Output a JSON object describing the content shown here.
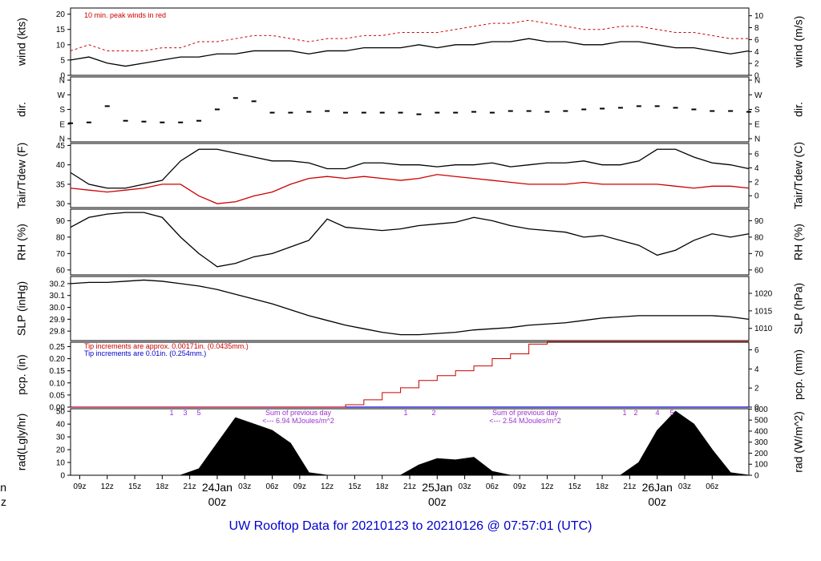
{
  "chart_data": {
    "type": "line",
    "footer": "UW Rooftop Data for 20210123  to  20210126 @ 07:57:01  (UTC)",
    "time_axis": {
      "labels": [
        "09z",
        "12z",
        "15z",
        "18z",
        "21z",
        "00z",
        "03z",
        "06z",
        "09z",
        "12z",
        "15z",
        "18z",
        "21z",
        "00z",
        "03z",
        "06z",
        "09z",
        "12z",
        "15z",
        "18z",
        "21z",
        "00z",
        "03z",
        "06z"
      ],
      "day_labels": [
        {
          "day": "24Jan",
          "time": "00z"
        },
        {
          "day": "25Jan",
          "time": "00z"
        },
        {
          "day": "26Jan",
          "time": "00z"
        }
      ],
      "edge_label": {
        "day": "Jan",
        "time": "z"
      },
      "colors": {
        "day": "#cc0000"
      }
    },
    "panels": {
      "wind": {
        "ylabel_left": "wind (kts)",
        "ylabel_right": "wind (m/s)",
        "ylim": [
          0,
          22
        ],
        "ylim_right": [
          0,
          11.3
        ],
        "ticks_left": [
          "0",
          "5",
          "10",
          "15",
          "20"
        ],
        "ticks_right": [
          "0",
          "2",
          "4",
          "6",
          "8",
          "10"
        ],
        "note": "10 min. peak winds in red",
        "series": [
          {
            "name": "10 min. peak winds",
            "color": "#cc0000",
            "style": "dash",
            "x": [
              0,
              2,
              4,
              6,
              8,
              10,
              12,
              14,
              16,
              18,
              20,
              22,
              24,
              26,
              28,
              30,
              32,
              34,
              36,
              38,
              40,
              42,
              44,
              46,
              48,
              50,
              52,
              54,
              56,
              58,
              60,
              62,
              64,
              66,
              68,
              70,
              72,
              74
            ],
            "values": [
              8,
              10,
              8,
              8,
              8,
              9,
              9,
              11,
              11,
              12,
              13,
              13,
              12,
              11,
              12,
              12,
              13,
              13,
              14,
              14,
              14,
              15,
              16,
              17,
              17,
              18,
              17,
              16,
              15,
              15,
              16,
              16,
              15,
              14,
              14,
              13,
              12,
              12
            ]
          },
          {
            "color": "#000000",
            "x": [
              0,
              2,
              4,
              6,
              8,
              10,
              12,
              14,
              16,
              18,
              20,
              22,
              24,
              26,
              28,
              30,
              32,
              34,
              36,
              38,
              40,
              42,
              44,
              46,
              48,
              50,
              52,
              54,
              56,
              58,
              60,
              62,
              64,
              66,
              68,
              70,
              72,
              74
            ],
            "values": [
              5,
              6,
              4,
              3,
              4,
              5,
              6,
              6,
              7,
              7,
              8,
              8,
              8,
              7,
              8,
              8,
              9,
              9,
              9,
              10,
              9,
              10,
              10,
              11,
              11,
              12,
              11,
              11,
              10,
              10,
              11,
              11,
              10,
              9,
              9,
              8,
              7,
              8
            ]
          }
        ]
      },
      "dir": {
        "ylabel_left": "dir.",
        "ylabel_right": "dir.",
        "ticks": [
          "N",
          "E",
          "S",
          "W",
          "N"
        ],
        "series": [
          {
            "color": "#000000",
            "style": "dots",
            "x": [
              0,
              2,
              4,
              6,
              8,
              10,
              12,
              14,
              16,
              18,
              20,
              22,
              24,
              26,
              28,
              30,
              32,
              34,
              36,
              38,
              40,
              42,
              44,
              46,
              48,
              50,
              52,
              54,
              56,
              58,
              60,
              62,
              64,
              66,
              68,
              70,
              72,
              74
            ],
            "values": [
              95,
              100,
              200,
              110,
              105,
              100,
              100,
              110,
              180,
              250,
              230,
              160,
              160,
              165,
              170,
              160,
              160,
              160,
              160,
              150,
              160,
              160,
              165,
              160,
              170,
              170,
              165,
              170,
              180,
              185,
              190,
              200,
              200,
              190,
              180,
              170,
              170,
              165
            ]
          }
        ]
      },
      "temp": {
        "ylabel_left": "Tair/Tdew (F)",
        "ylabel_right": "Tair/Tdew (C)",
        "ylim": [
          29,
          45.5
        ],
        "ylim_right": [
          -1.7,
          7.5
        ],
        "ticks_left": [
          "30",
          "35",
          "40",
          "45"
        ],
        "ticks_right": [
          "0",
          "2",
          "4",
          "6"
        ],
        "series": [
          {
            "name": "Tair",
            "color": "#000000",
            "x": [
              0,
              2,
              4,
              6,
              8,
              10,
              12,
              14,
              16,
              18,
              20,
              22,
              24,
              26,
              28,
              30,
              32,
              34,
              36,
              38,
              40,
              42,
              44,
              46,
              48,
              50,
              52,
              54,
              56,
              58,
              60,
              62,
              64,
              66,
              68,
              70,
              72,
              74
            ],
            "values": [
              38,
              35,
              34,
              34,
              35,
              36,
              41,
              44,
              44,
              43,
              42,
              41,
              41,
              40.5,
              39,
              39,
              40.5,
              40.5,
              40,
              40,
              39.5,
              40,
              40,
              40.5,
              39.5,
              40,
              40.5,
              40.5,
              41,
              40,
              40,
              41,
              44,
              44,
              42,
              40.5,
              40,
              39
            ]
          },
          {
            "name": "Tdew",
            "color": "#cc0000",
            "x": [
              0,
              2,
              4,
              6,
              8,
              10,
              12,
              14,
              16,
              18,
              20,
              22,
              24,
              26,
              28,
              30,
              32,
              34,
              36,
              38,
              40,
              42,
              44,
              46,
              48,
              50,
              52,
              54,
              56,
              58,
              60,
              62,
              64,
              66,
              68,
              70,
              72,
              74
            ],
            "values": [
              34,
              33.5,
              33,
              33.5,
              34,
              35,
              35,
              32,
              30,
              30.5,
              32,
              33,
              35,
              36.5,
              37,
              36.5,
              37,
              36.5,
              36,
              36.5,
              37.5,
              37,
              36.5,
              36,
              35.5,
              35,
              35,
              35,
              35.5,
              35,
              35,
              35,
              35,
              34.5,
              34,
              34.5,
              34.5,
              34
            ]
          }
        ]
      },
      "rh": {
        "ylabel_left": "RH (%)",
        "ylabel_right": "RH (%)",
        "ylim": [
          57,
          97
        ],
        "ticks_left": [
          "60",
          "70",
          "80",
          "90"
        ],
        "ticks_right": [
          "60",
          "70",
          "80",
          "90"
        ],
        "series": [
          {
            "color": "#000000",
            "x": [
              0,
              2,
              4,
              6,
              8,
              10,
              12,
              14,
              16,
              18,
              20,
              22,
              24,
              26,
              28,
              30,
              32,
              34,
              36,
              38,
              40,
              42,
              44,
              46,
              48,
              50,
              52,
              54,
              56,
              58,
              60,
              62,
              64,
              66,
              68,
              70,
              72,
              74
            ],
            "values": [
              86,
              92,
              94,
              95,
              95,
              92,
              80,
              70,
              62,
              64,
              68,
              70,
              74,
              78,
              91,
              86,
              85,
              84,
              85,
              87,
              88,
              89,
              92,
              90,
              87,
              85,
              84,
              83,
              80,
              81,
              78,
              75,
              69,
              72,
              78,
              82,
              80,
              82
            ]
          }
        ]
      },
      "slp": {
        "ylabel_left": "SLP (inHg)",
        "ylabel_right": "SLP (hPa)",
        "ylim": [
          29.72,
          30.26
        ],
        "ylim_right": [
          1006.5,
          1024.8
        ],
        "ticks_left": [
          "29.8",
          "29.9",
          "30.0",
          "30.1",
          "30.2"
        ],
        "ticks_right": [
          "1010",
          "1015",
          "1020"
        ],
        "series": [
          {
            "color": "#000000",
            "x": [
              0,
              2,
              4,
              6,
              8,
              10,
              12,
              14,
              16,
              18,
              20,
              22,
              24,
              26,
              28,
              30,
              32,
              34,
              36,
              38,
              40,
              42,
              44,
              46,
              48,
              50,
              52,
              54,
              56,
              58,
              60,
              62,
              64,
              66,
              68,
              70,
              72,
              74
            ],
            "values": [
              30.2,
              30.21,
              30.21,
              30.22,
              30.23,
              30.22,
              30.2,
              30.18,
              30.15,
              30.11,
              30.07,
              30.03,
              29.98,
              29.93,
              29.89,
              29.85,
              29.82,
              29.79,
              29.77,
              29.77,
              29.78,
              29.79,
              29.81,
              29.82,
              29.83,
              29.85,
              29.86,
              29.87,
              29.89,
              29.91,
              29.92,
              29.93,
              29.93,
              29.93,
              29.93,
              29.93,
              29.92,
              29.9
            ]
          }
        ]
      },
      "pcp": {
        "ylabel_left": "pcp. (in)",
        "ylabel_right": "pcp. (mm)",
        "ylim": [
          0,
          0.268
        ],
        "ylim_right": [
          0,
          6.8
        ],
        "ticks_left": [
          "0.00",
          "0.05",
          "0.10",
          "0.15",
          "0.20",
          "0.25"
        ],
        "ticks_right": [
          "0",
          "2",
          "4",
          "6"
        ],
        "note_red": "Tip increments are approx. 0.00171in. (0.0435mm.)",
        "note_blue": "Tip increments are 0.01in. (0.254mm.)",
        "series": [
          {
            "color": "#0000cc",
            "x": [
              0,
              2,
              4,
              6,
              8,
              10,
              12,
              14,
              16,
              18,
              20,
              22,
              24,
              26,
              28,
              30,
              32,
              34,
              36,
              38,
              40,
              42,
              44,
              46,
              48,
              50,
              52,
              54,
              56,
              58,
              60,
              62,
              64,
              66,
              68,
              70,
              72,
              74
            ],
            "values": [
              0,
              0,
              0,
              0,
              0,
              0,
              0,
              0,
              0,
              0,
              0,
              0,
              0,
              0,
              0,
              0,
              0,
              0,
              0,
              0,
              0,
              0,
              0,
              0,
              0,
              0,
              0,
              0,
              0,
              0,
              0,
              0,
              0,
              0,
              0,
              0,
              0,
              0
            ]
          },
          {
            "color": "#cc0000",
            "style": "step",
            "x": [
              0,
              2,
              4,
              6,
              8,
              10,
              12,
              14,
              16,
              18,
              20,
              22,
              24,
              26,
              28,
              30,
              32,
              34,
              36,
              38,
              40,
              42,
              44,
              46,
              48,
              50,
              52,
              54,
              56,
              58,
              60,
              62,
              64,
              66,
              68,
              70,
              72,
              74
            ],
            "values": [
              0,
              0,
              0,
              0,
              0,
              0,
              0,
              0,
              0,
              0,
              0,
              0,
              0,
              0,
              0,
              0.01,
              0.03,
              0.06,
              0.08,
              0.11,
              0.13,
              0.15,
              0.17,
              0.2,
              0.22,
              0.26,
              0.27,
              0.27,
              0.27,
              0.27,
              0.27,
              0.27,
              0.27,
              0.27,
              0.27,
              0.27,
              0.27,
              0.27
            ]
          }
        ]
      },
      "rad": {
        "ylabel_left": "rad(Lgly/hr)",
        "ylabel_right": "rad (W/m^2)",
        "ylim": [
          0,
          52
        ],
        "ylim_right": [
          0,
          603
        ],
        "ticks_left": [
          "0",
          "10",
          "20",
          "30",
          "40",
          "50"
        ],
        "ticks_right": [
          "0",
          "100",
          "200",
          "300",
          "400",
          "500",
          "600"
        ],
        "sum_label": "Sum of previous day",
        "sums": [
          "<--- 6.94 MJoules/m^2",
          "<--- 2.54 MJoules/m^2"
        ],
        "markers": [
          "1",
          "3",
          "5",
          "1",
          "2",
          "1",
          "2",
          "4",
          "5"
        ],
        "series": [
          {
            "color": "#000000",
            "style": "area",
            "x": [
              0,
              2,
              4,
              6,
              8,
              10,
              12,
              14,
              16,
              18,
              20,
              22,
              24,
              26,
              28,
              30,
              32,
              34,
              36,
              38,
              40,
              42,
              44,
              46,
              48,
              50,
              52,
              54,
              56,
              58,
              60,
              62,
              64,
              66,
              68,
              70,
              72,
              74
            ],
            "values": [
              0,
              0,
              0,
              0,
              0,
              0,
              0,
              5,
              25,
              45,
              40,
              35,
              25,
              2,
              0,
              0,
              0,
              0,
              0,
              8,
              13,
              12,
              14,
              3,
              0,
              0,
              0,
              0,
              0,
              0,
              0,
              10,
              35,
              50,
              40,
              20,
              2,
              0
            ]
          }
        ]
      }
    }
  }
}
